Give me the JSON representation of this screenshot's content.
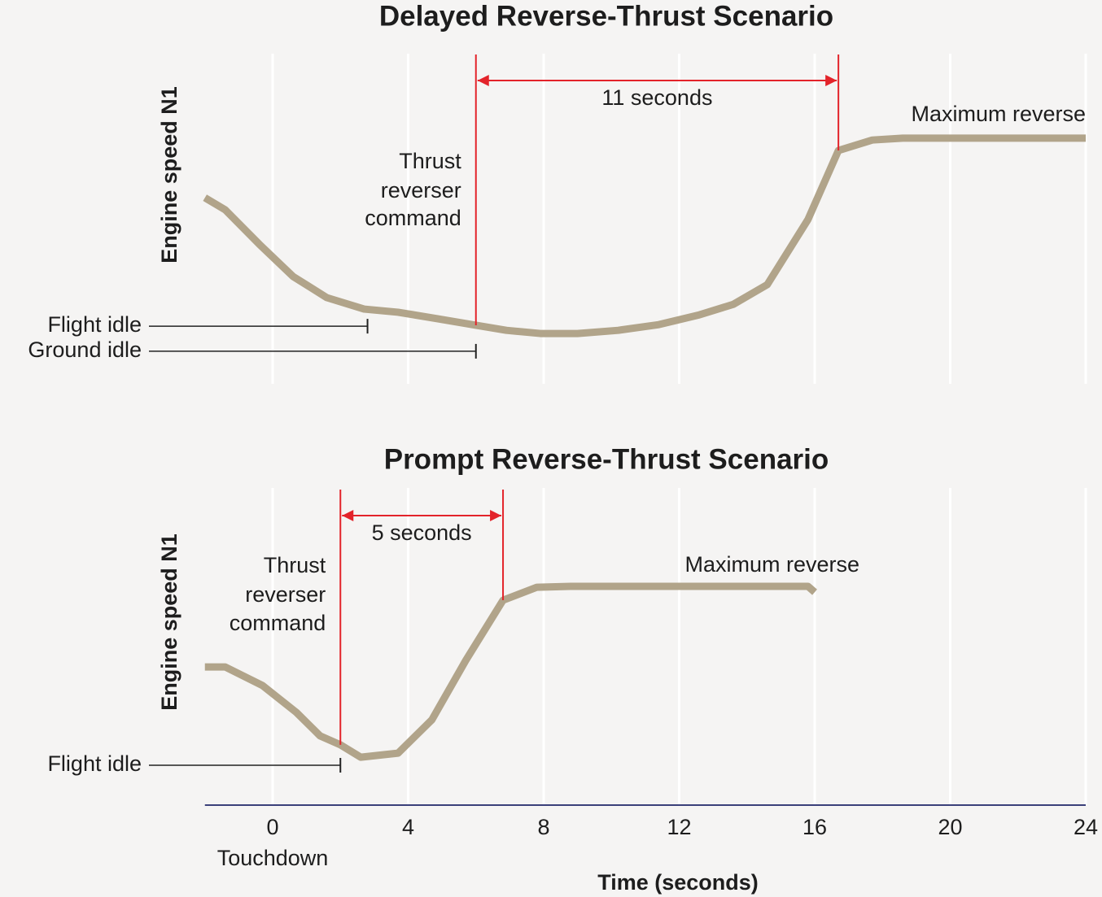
{
  "chart_data": [
    {
      "type": "line",
      "title": "Delayed Reverse-Thrust Scenario",
      "y_label": "Engine speed N1",
      "x": [
        -2,
        -1.4,
        -0.4,
        0.6,
        1.6,
        2.7,
        3.7,
        4.9,
        6,
        6.9,
        7.9,
        9,
        10.2,
        11.4,
        12.6,
        13.6,
        14.6,
        15.8,
        16.7,
        17.7,
        18.6,
        24
      ],
      "values": [
        55.6,
        51.8,
        41,
        30.8,
        24.1,
        20.5,
        19.5,
        17.4,
        15.4,
        13.8,
        12.8,
        12.8,
        13.8,
        15.6,
        18.7,
        22,
        28.2,
        48.7,
        70.5,
        73.8,
        74.4,
        74.4
      ],
      "color": "#b1a48a",
      "ylim": [
        0,
        100
      ],
      "interval": {
        "x": [
          6,
          16.7
        ],
        "label": "11 seconds",
        "color": "#e3232a"
      },
      "command_label": [
        "Thrust",
        "reverser",
        "command"
      ],
      "curve_label": "Maximum reverse",
      "reference_lines": [
        {
          "label": "Flight idle",
          "value": 15.1,
          "x_end": 2.8
        },
        {
          "label": "Ground idle",
          "value": 7.2,
          "x_end": 6
        }
      ]
    },
    {
      "type": "line",
      "title": "Prompt Reverse-Thrust Scenario",
      "y_label": "Engine speed N1",
      "x": [
        -2,
        -1.4,
        -0.3,
        0.7,
        1.4,
        2,
        2.6,
        3.7,
        4.7,
        5.7,
        6.8,
        7.8,
        8.8,
        15.8,
        16
      ],
      "values": [
        44.7,
        44.7,
        38.7,
        30,
        22.4,
        19.5,
        15.5,
        16.8,
        27.6,
        46.8,
        66.3,
        70.5,
        70.8,
        70.8,
        68.9
      ],
      "color": "#b1a48a",
      "ylim": [
        0,
        100
      ],
      "interval": {
        "x": [
          2,
          6.8
        ],
        "label": "5 seconds",
        "color": "#e3232a"
      },
      "command_label": [
        "Thrust",
        "reverser",
        "command"
      ],
      "curve_label": "Maximum reverse",
      "reference_lines": [
        {
          "label": "Flight idle",
          "value": 12.9,
          "x_end": 2
        }
      ],
      "xlim": [
        -2,
        24
      ],
      "xticks": [
        0,
        4,
        8,
        12,
        16,
        20,
        24
      ],
      "x_label": "Time (seconds)",
      "x_annotation": {
        "value": 0,
        "label": "Touchdown"
      },
      "axis_color": "#3b407a",
      "grid": true
    }
  ]
}
